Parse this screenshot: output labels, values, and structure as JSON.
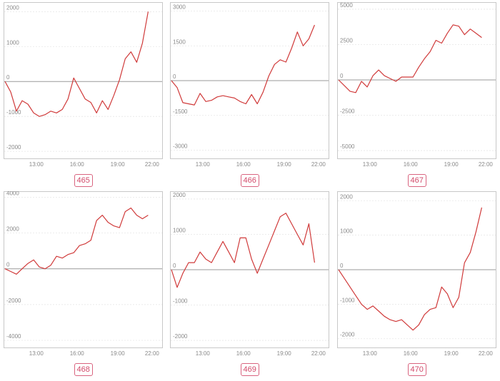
{
  "chart_data": [
    {
      "type": "line",
      "label": "465",
      "x": [
        "10:00",
        "10:30",
        "11:00",
        "11:30",
        "12:00",
        "12:30",
        "13:00",
        "13:30",
        "14:00",
        "14:30",
        "15:00",
        "15:30",
        "16:00",
        "16:30",
        "17:00",
        "17:30",
        "18:00",
        "18:30",
        "19:00",
        "19:30",
        "20:00",
        "20:30",
        "21:00",
        "21:30",
        "22:00",
        "22:30"
      ],
      "x_ticks": [
        "13:00",
        "16:00",
        "19:00",
        "22:00"
      ],
      "y_ticks": [
        -2000,
        -1000,
        0,
        1000,
        2000
      ],
      "ylim": [
        -2100,
        2150
      ],
      "series_color": "#d03a3a",
      "values": [
        0,
        -300,
        -850,
        -550,
        -650,
        -900,
        -1000,
        -950,
        -850,
        -900,
        -800,
        -500,
        100,
        -200,
        -500,
        -600,
        -900,
        -550,
        -800,
        -400,
        50,
        650,
        850,
        550,
        1100,
        2000
      ]
    },
    {
      "type": "line",
      "label": "466",
      "x_ticks": [
        "13:00",
        "16:00",
        "19:00",
        "22:00"
      ],
      "y_ticks": [
        -3000,
        -1500,
        0,
        1500,
        3000
      ],
      "ylim": [
        -3200,
        3200
      ],
      "series_color": "#d03a3a",
      "values": [
        0,
        -300,
        -950,
        -1000,
        -1050,
        -550,
        -900,
        -850,
        -700,
        -650,
        -700,
        -750,
        -900,
        -1000,
        -600,
        -1000,
        -500,
        200,
        700,
        900,
        800,
        1400,
        2100,
        1500,
        1800,
        2400
      ]
    },
    {
      "type": "line",
      "label": "467",
      "x_ticks": [
        "13:00",
        "16:00",
        "19:00",
        "22:00"
      ],
      "y_ticks": [
        -5000,
        -2500,
        0,
        2500,
        5000
      ],
      "ylim": [
        -5300,
        5200
      ],
      "series_color": "#d03a3a",
      "values": [
        0,
        -400,
        -800,
        -900,
        -100,
        -500,
        300,
        700,
        300,
        100,
        -100,
        200,
        200,
        200,
        900,
        1500,
        2000,
        2800,
        2600,
        3300,
        3900,
        3800,
        3200,
        3600,
        3300,
        3000
      ]
    },
    {
      "type": "line",
      "label": "468",
      "x_ticks": [
        "13:00",
        "16:00",
        "19:00",
        "22:00"
      ],
      "y_ticks": [
        -4000,
        -2000,
        0,
        2000,
        4000
      ],
      "ylim": [
        -4200,
        4100
      ],
      "series_color": "#d03a3a",
      "values": [
        0,
        -150,
        -300,
        0,
        300,
        500,
        100,
        0,
        200,
        700,
        600,
        800,
        900,
        1300,
        1400,
        1600,
        2700,
        3000,
        2600,
        2400,
        2300,
        3200,
        3400,
        3000,
        2800,
        3000
      ]
    },
    {
      "type": "line",
      "label": "469",
      "x_ticks": [
        "13:00",
        "16:00",
        "19:00",
        "22:00"
      ],
      "y_ticks": [
        -2000,
        -1000,
        0,
        1000,
        2000
      ],
      "ylim": [
        -2100,
        2100
      ],
      "series_color": "#d03a3a",
      "values": [
        0,
        -500,
        -100,
        200,
        200,
        500,
        300,
        200,
        500,
        800,
        500,
        200,
        900,
        900,
        300,
        -100,
        300,
        700,
        1100,
        1500,
        1600,
        1300,
        1000,
        700,
        1300,
        200
      ]
    },
    {
      "type": "line",
      "label": "470",
      "x_ticks": [
        "13:00",
        "16:00",
        "19:00",
        "22:00"
      ],
      "y_ticks": [
        -2000,
        -1000,
        0,
        1000,
        2000
      ],
      "ylim": [
        -2150,
        2150
      ],
      "series_color": "#d03a3a",
      "values": [
        0,
        -250,
        -500,
        -750,
        -1000,
        -1150,
        -1050,
        -1200,
        -1350,
        -1450,
        -1500,
        -1450,
        -1600,
        -1750,
        -1600,
        -1300,
        -1150,
        -1100,
        -500,
        -700,
        -1100,
        -800,
        200,
        500,
        1100,
        1800
      ]
    }
  ]
}
